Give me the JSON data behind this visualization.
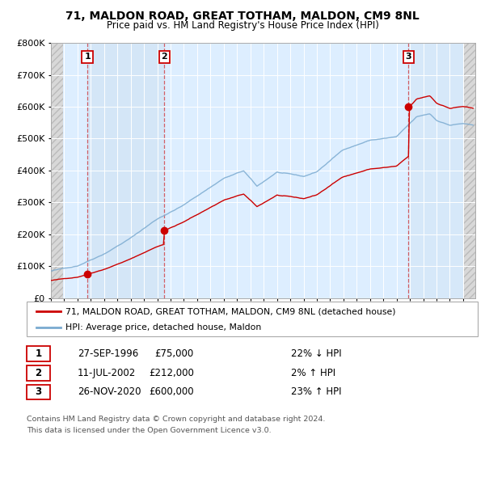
{
  "title": "71, MALDON ROAD, GREAT TOTHAM, MALDON, CM9 8NL",
  "subtitle": "Price paid vs. HM Land Registry's House Price Index (HPI)",
  "ylim": [
    0,
    800000
  ],
  "xlim_start": 1994.0,
  "xlim_end": 2025.92,
  "yticks": [
    0,
    100000,
    200000,
    300000,
    400000,
    500000,
    600000,
    700000,
    800000
  ],
  "ytick_labels": [
    "£0",
    "£100K",
    "£200K",
    "£300K",
    "£400K",
    "£500K",
    "£600K",
    "£700K",
    "£800K"
  ],
  "xticks": [
    1994,
    1995,
    1996,
    1997,
    1998,
    1999,
    2000,
    2001,
    2002,
    2003,
    2004,
    2005,
    2006,
    2007,
    2008,
    2009,
    2010,
    2011,
    2012,
    2013,
    2014,
    2015,
    2016,
    2017,
    2018,
    2019,
    2020,
    2021,
    2022,
    2023,
    2024,
    2025
  ],
  "sale_dates": [
    1996.74,
    2002.53,
    2020.9
  ],
  "sale_prices": [
    75000,
    212000,
    600000
  ],
  "sale_labels": [
    "1",
    "2",
    "3"
  ],
  "sale_date_strs": [
    "27-SEP-1996",
    "11-JUL-2002",
    "26-NOV-2020"
  ],
  "sale_price_strs": [
    "£75,000",
    "£212,000",
    "£600,000"
  ],
  "sale_hpi_strs": [
    "22% ↓ HPI",
    "2% ↑ HPI",
    "23% ↑ HPI"
  ],
  "legend_line1": "71, MALDON ROAD, GREAT TOTHAM, MALDON, CM9 8NL (detached house)",
  "legend_line2": "HPI: Average price, detached house, Maldon",
  "footer1": "Contains HM Land Registry data © Crown copyright and database right 2024.",
  "footer2": "This data is licensed under the Open Government Licence v3.0.",
  "red_color": "#cc0000",
  "blue_color": "#7aaad0",
  "plot_bg_color": "#ddeeff",
  "grid_color": "#ffffff",
  "hatch_color": "#c8c8c8"
}
